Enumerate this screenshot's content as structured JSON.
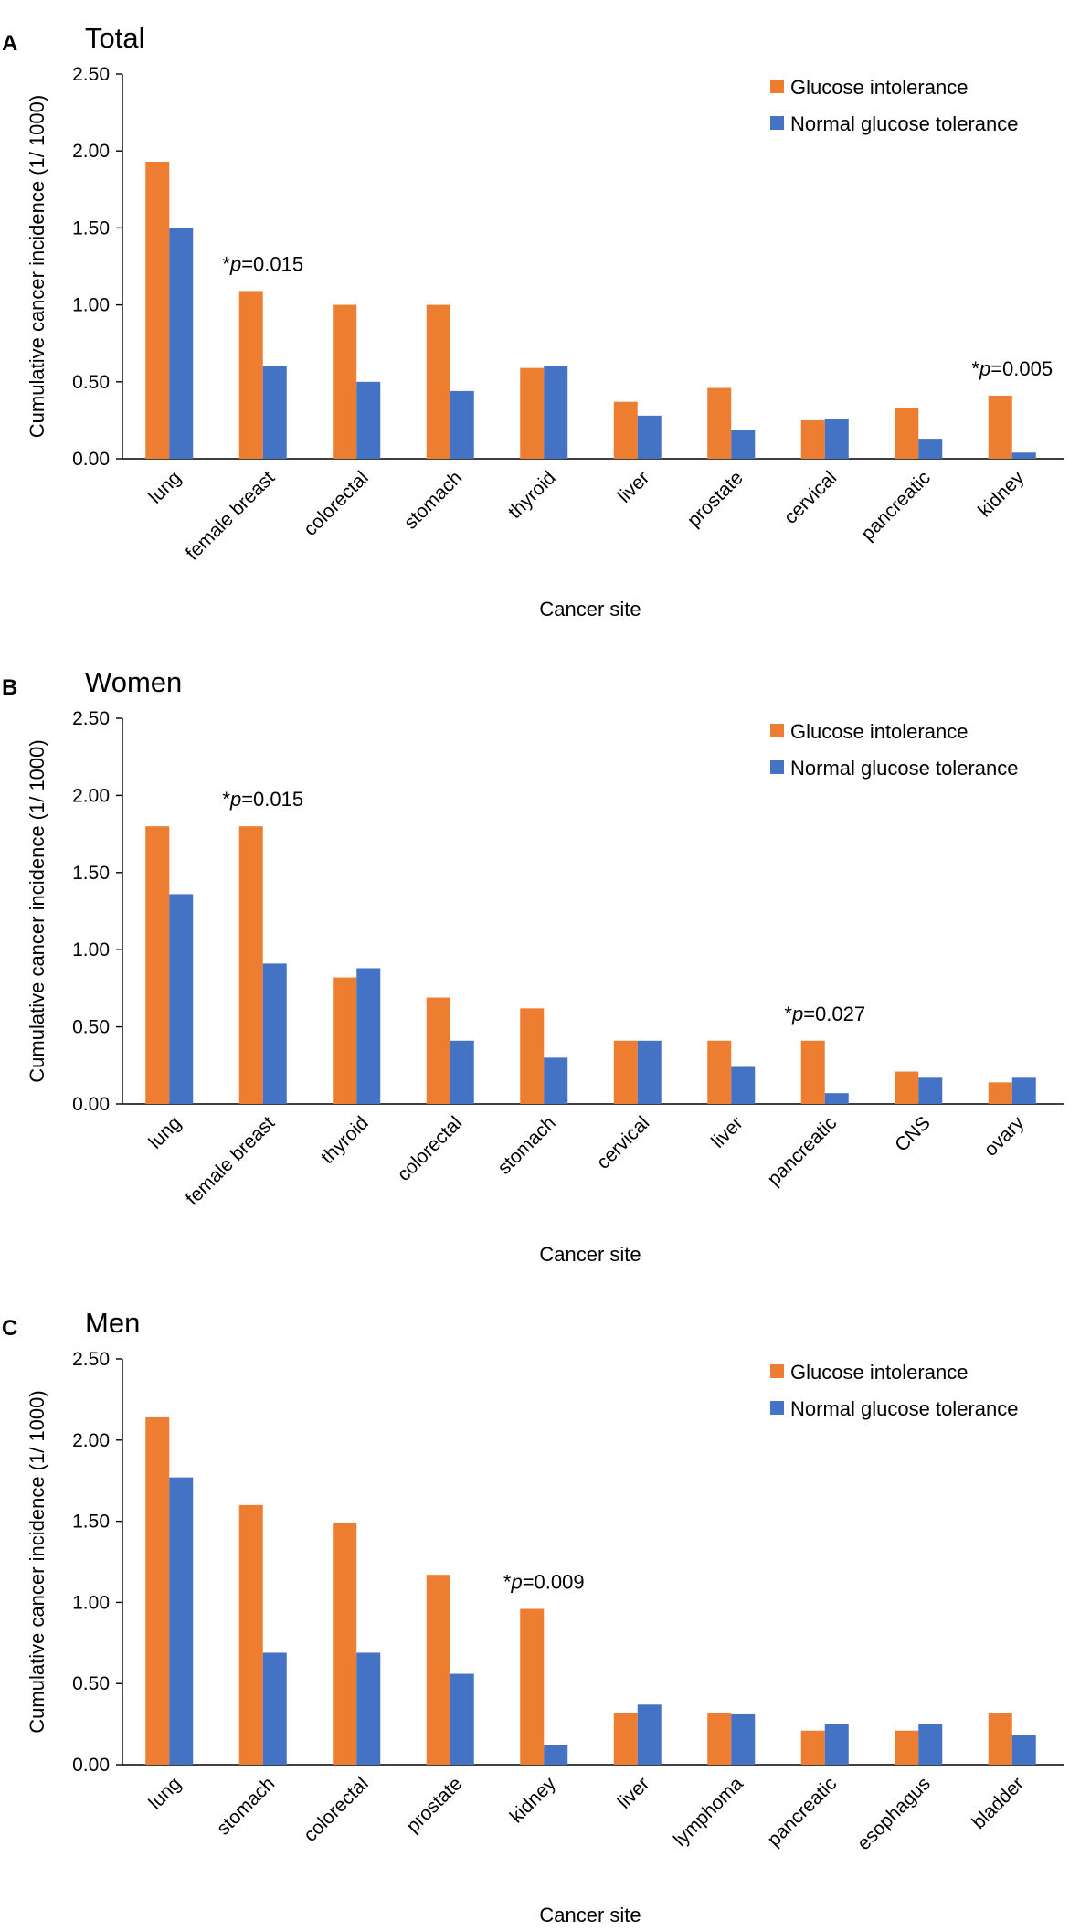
{
  "colors": {
    "glucose_intolerance": "#ED7D31",
    "normal_glucose_tolerance": "#4472C4"
  },
  "chart_data": [
    {
      "type": "bar",
      "panel": "A",
      "title": "Total",
      "xlabel": "Cancer site",
      "ylabel": "Cumulative cancer incidence (1/ 1000)",
      "ylim": [
        0,
        2.5
      ],
      "yticks": [
        "0.00",
        "0.50",
        "1.00",
        "1.50",
        "2.00",
        "2.50"
      ],
      "categories": [
        "lung",
        "female breast",
        "colorectal",
        "stomach",
        "thyroid",
        "liver",
        "prostate",
        "cervical",
        "pancreatic",
        "kidney"
      ],
      "series": [
        {
          "name": "Glucose intolerance",
          "values": [
            1.93,
            1.09,
            1.0,
            1.0,
            0.59,
            0.37,
            0.46,
            0.25,
            0.33,
            0.41
          ]
        },
        {
          "name": "Normal glucose tolerance",
          "values": [
            1.5,
            0.6,
            0.5,
            0.44,
            0.6,
            0.28,
            0.19,
            0.26,
            0.13,
            0.04
          ]
        }
      ],
      "annotations": [
        {
          "category": "female breast",
          "prefix": "*",
          "italic": "p",
          "suffix": "=0.015"
        },
        {
          "category": "kidney",
          "prefix": "*",
          "italic": "p",
          "suffix": "=0.005"
        }
      ]
    },
    {
      "type": "bar",
      "panel": "B",
      "title": "Women",
      "xlabel": "Cancer site",
      "ylabel": "Cumulative cancer incidence (1/ 1000)",
      "ylim": [
        0,
        2.5
      ],
      "yticks": [
        "0.00",
        "0.50",
        "1.00",
        "1.50",
        "2.00",
        "2.50"
      ],
      "categories": [
        "lung",
        "female breast",
        "thyroid",
        "colorectal",
        "stomach",
        "cervical",
        "liver",
        "pancreatic",
        "CNS",
        "ovary"
      ],
      "series": [
        {
          "name": "Glucose intolerance",
          "values": [
            1.8,
            1.8,
            0.82,
            0.69,
            0.62,
            0.41,
            0.41,
            0.41,
            0.21,
            0.14
          ]
        },
        {
          "name": "Normal glucose tolerance",
          "values": [
            1.36,
            0.91,
            0.88,
            0.41,
            0.3,
            0.41,
            0.24,
            0.07,
            0.17,
            0.17
          ]
        }
      ],
      "annotations": [
        {
          "category": "female breast",
          "prefix": "*",
          "italic": "p",
          "suffix": "=0.015"
        },
        {
          "category": "pancreatic",
          "prefix": "*",
          "italic": "p",
          "suffix": "=0.027"
        }
      ]
    },
    {
      "type": "bar",
      "panel": "C",
      "title": "Men",
      "xlabel": "Cancer site",
      "ylabel": "Cumulative cancer incidence (1/ 1000)",
      "ylim": [
        0,
        2.5
      ],
      "yticks": [
        "0.00",
        "0.50",
        "1.00",
        "1.50",
        "2.00",
        "2.50"
      ],
      "categories": [
        "lung",
        "stomach",
        "colorectal",
        "prostate",
        "kidney",
        "liver",
        "lymphoma",
        "pancreatic",
        "esophagus",
        "bladder"
      ],
      "series": [
        {
          "name": "Glucose intolerance",
          "values": [
            2.14,
            1.6,
            1.49,
            1.17,
            0.96,
            0.32,
            0.32,
            0.21,
            0.21,
            0.32
          ]
        },
        {
          "name": "Normal glucose tolerance",
          "values": [
            1.77,
            0.69,
            0.69,
            0.56,
            0.12,
            0.37,
            0.31,
            0.25,
            0.25,
            0.18
          ]
        }
      ],
      "annotations": [
        {
          "category": "kidney",
          "prefix": "*",
          "italic": "p",
          "suffix": "=0.009"
        }
      ]
    }
  ]
}
